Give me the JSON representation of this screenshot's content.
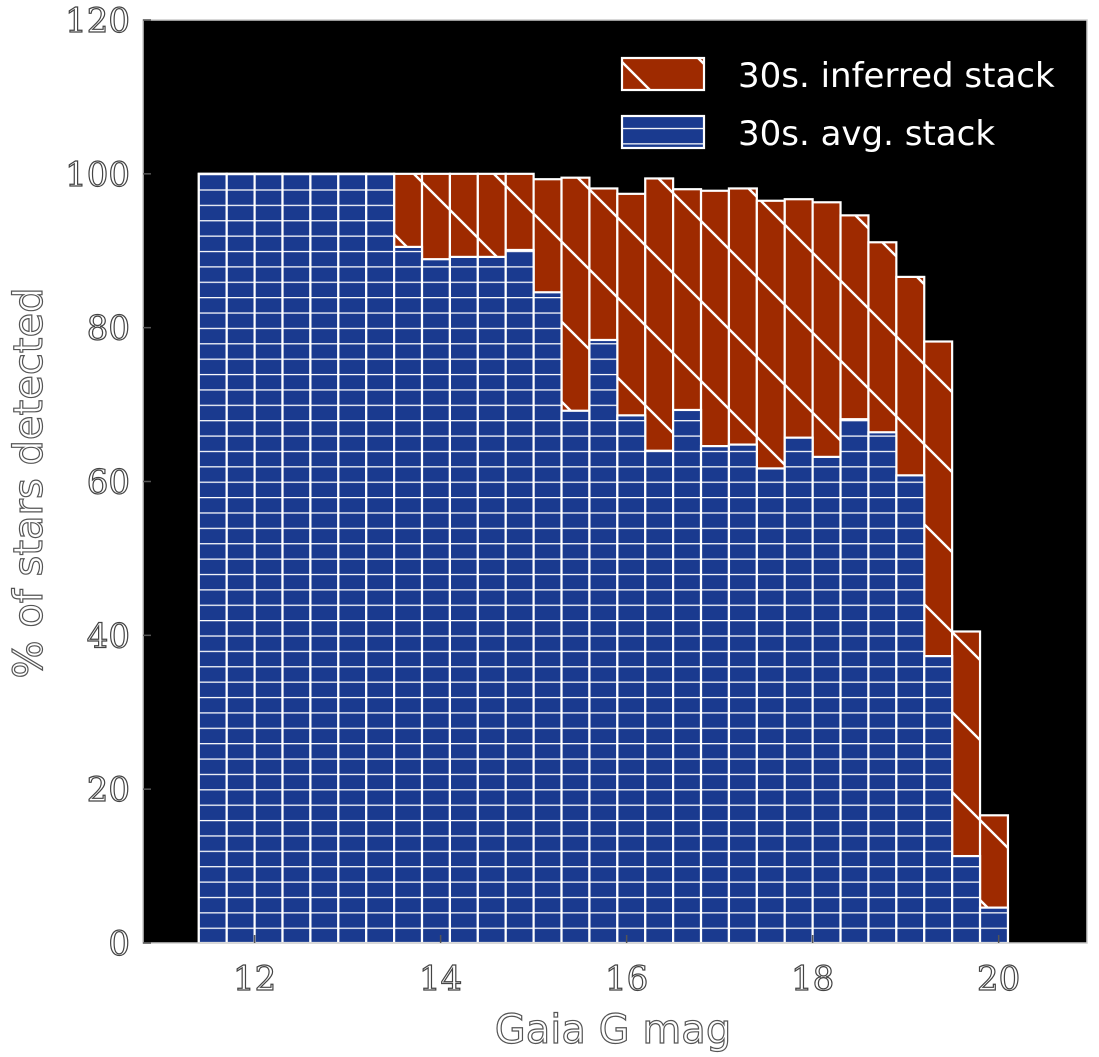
{
  "chart_data": {
    "type": "bar",
    "stacked": "overlay",
    "xlabel": "Gaia G mag",
    "ylabel": "% of stars detected",
    "xlim": [
      10.8,
      20.95
    ],
    "ylim": [
      0,
      120
    ],
    "xticks": [
      12,
      14,
      16,
      18,
      20
    ],
    "yticks": [
      0,
      20,
      40,
      60,
      80,
      100,
      120
    ],
    "bin_edges": [
      11.4,
      11.7,
      12.0,
      12.3,
      12.6,
      12.9,
      13.2,
      13.5,
      13.8,
      14.1,
      14.4,
      14.7,
      15.0,
      15.3,
      15.6,
      15.9,
      16.2,
      16.5,
      16.8,
      17.1,
      17.4,
      17.7,
      18.0,
      18.3,
      18.6,
      18.9,
      19.2,
      19.5,
      19.8,
      20.1,
      20.4
    ],
    "legend_position": "top-right",
    "background": "#000000",
    "series": [
      {
        "name": "30s. inferred stack",
        "color": "#9e2a00",
        "hatch": "diagonal",
        "values": [
          100,
          100,
          100,
          100,
          100,
          100,
          100,
          100,
          100,
          100,
          100,
          100,
          99.3,
          99.5,
          98.1,
          97.4,
          99.4,
          98.0,
          97.8,
          98.1,
          96.5,
          96.7,
          96.3,
          94.6,
          91.1,
          86.6,
          78.2,
          40.5,
          16.6,
          null
        ]
      },
      {
        "name": "30s. avg. stack",
        "color": "#1a3a8f",
        "hatch": "horizontal",
        "values": [
          100,
          100,
          100,
          100,
          100,
          100,
          100,
          90.5,
          88.9,
          89.2,
          89.2,
          90.1,
          84.6,
          69.2,
          78.4,
          68.6,
          64.0,
          69.3,
          64.6,
          64.8,
          61.7,
          65.7,
          63.2,
          68.1,
          66.4,
          60.8,
          37.3,
          11.3,
          4.6,
          null
        ]
      }
    ]
  }
}
